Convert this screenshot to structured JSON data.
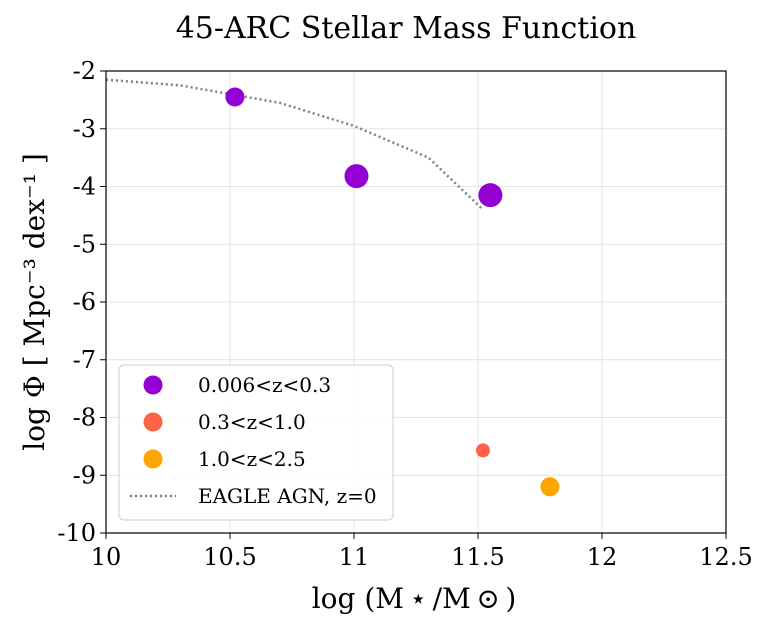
{
  "chart_data": {
    "type": "scatter",
    "title": "45-ARC Stellar Mass Function",
    "xlabel": "log (M ⋆ /M ⊙ )",
    "ylabel": "log Φ [ Mpc⁻³ dex⁻¹ ]",
    "xlim": [
      10,
      12.5
    ],
    "ylim": [
      -10,
      -2
    ],
    "xticks": [
      "10",
      "10.5",
      "11",
      "11.5",
      "12",
      "12.5"
    ],
    "yticks": [
      "-10",
      "-9",
      "-8",
      "-7",
      "-6",
      "-5",
      "-4",
      "-3",
      "-2"
    ],
    "grid": true,
    "legend_position": "lower-left",
    "series": [
      {
        "name": "0.006<z<0.3",
        "color": "#9400d3",
        "points": [
          {
            "x": 10.52,
            "y": -2.45,
            "size": "medium"
          },
          {
            "x": 11.01,
            "y": -3.82,
            "size": "large"
          },
          {
            "x": 11.55,
            "y": -4.15,
            "size": "large"
          }
        ]
      },
      {
        "name": "0.3<z<1.0",
        "color": "#ff6347",
        "points": [
          {
            "x": 11.52,
            "y": -8.57,
            "size": "small"
          }
        ]
      },
      {
        "name": "1.0<z<2.5",
        "color": "#ffa500",
        "points": [
          {
            "x": 11.79,
            "y": -9.2,
            "size": "medium"
          }
        ]
      },
      {
        "name": "EAGLE AGN, z=0",
        "color": "#808080",
        "style": "dotted-line",
        "x": [
          10.0,
          10.3,
          10.7,
          11.0,
          11.3,
          11.52
        ],
        "y": [
          -2.15,
          -2.25,
          -2.55,
          -2.95,
          -3.5,
          -4.4
        ]
      }
    ]
  }
}
